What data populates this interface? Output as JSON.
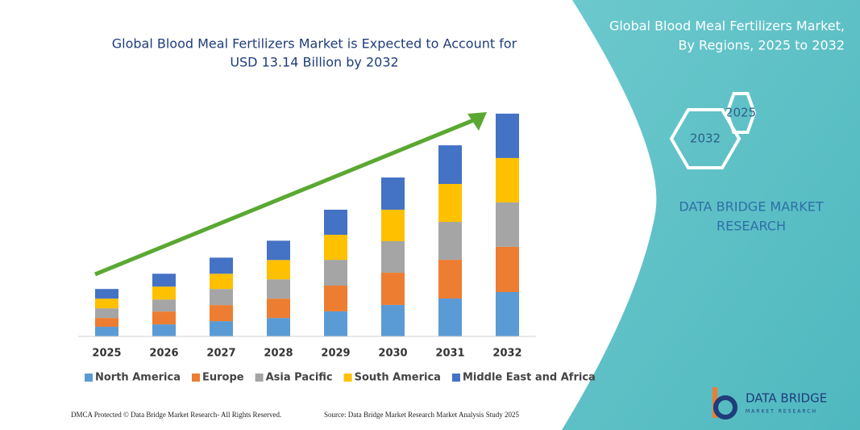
{
  "chart_data": {
    "type": "stacked_bar",
    "title_lines": [
      "Global Blood Meal Fertilizers Market is Expected to Account for",
      "USD 13.14 Billion by 2032"
    ],
    "categories": [
      "2025",
      "2026",
      "2027",
      "2028",
      "2029",
      "2030",
      "2031",
      "2032"
    ],
    "series": [
      {
        "name": "North America",
        "color": "#5b9bd5",
        "values": [
          0.57,
          0.71,
          0.9,
          1.09,
          1.48,
          1.86,
          2.24,
          2.62
        ]
      },
      {
        "name": "Europe",
        "color": "#ed7d31",
        "values": [
          0.52,
          0.76,
          0.95,
          1.14,
          1.52,
          1.9,
          2.28,
          2.67
        ]
      },
      {
        "name": "Asia Pacific",
        "color": "#a5a5a5",
        "values": [
          0.57,
          0.71,
          0.95,
          1.14,
          1.52,
          1.86,
          2.24,
          2.62
        ]
      },
      {
        "name": "South America",
        "color": "#ffc000",
        "values": [
          0.57,
          0.76,
          0.9,
          1.14,
          1.48,
          1.86,
          2.24,
          2.62
        ]
      },
      {
        "name": "Middle East and Africa",
        "color": "#4472c4",
        "values": [
          0.57,
          0.76,
          0.95,
          1.14,
          1.48,
          1.9,
          2.28,
          2.62
        ]
      }
    ],
    "ylim": [
      0,
      14
    ],
    "grid": false,
    "legend": "bottom"
  },
  "panel": {
    "title_lines": [
      "Global Blood Meal Fertilizers Market,",
      "By Regions, 2025 to 2032"
    ],
    "hexagons": [
      "2025",
      "2032"
    ],
    "brand_lines": [
      "DATA BRIDGE MARKET",
      "RESEARCH"
    ],
    "logo": {
      "name": "DATA BRIDGE",
      "tagline": "MARKET RESEARCH"
    }
  },
  "footer": {
    "left": "DMCA Protected © Data Bridge Market Research- All Rights Reserved.",
    "right": "Source: Data Bridge Market Research  Market Analysis Study 2025"
  }
}
